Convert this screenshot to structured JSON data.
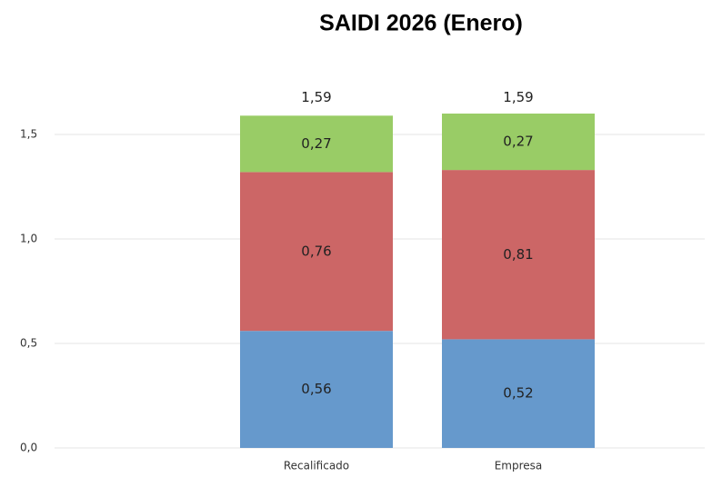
{
  "chart_data": {
    "type": "stacked_bar",
    "title": "SAIDI 2026 (Enero)",
    "categories": [
      "Recalificado",
      "Empresa"
    ],
    "series": [
      {
        "color": "#6699cc",
        "values": [
          0.56,
          0.52
        ],
        "value_labels": [
          "0,56",
          "0,52"
        ]
      },
      {
        "color": "#cc6666",
        "values": [
          0.76,
          0.81
        ],
        "value_labels": [
          "0,76",
          "0,81"
        ]
      },
      {
        "color": "#99cc66",
        "values": [
          0.27,
          0.27
        ],
        "value_labels": [
          "0,27",
          "0,27"
        ]
      }
    ],
    "totals": [
      1.59,
      1.59
    ],
    "total_labels": [
      "1,59",
      "1,59"
    ],
    "ylim": [
      0,
      1.7
    ],
    "yticks": [
      {
        "value": 0,
        "label": "0,0"
      },
      {
        "value": 0.5,
        "label": "0,5"
      },
      {
        "value": 1,
        "label": "1,0"
      },
      {
        "value": 1.5,
        "label": "1,5"
      }
    ],
    "grid": true
  }
}
